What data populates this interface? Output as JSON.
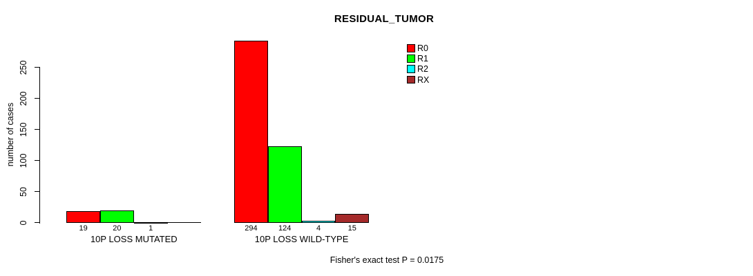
{
  "page": {
    "background": "#ffffff",
    "text_color": "#000000"
  },
  "chart_data": {
    "type": "bar",
    "title": "RESIDUAL_TUMOR",
    "xlabel": "",
    "ylabel": "number of cases",
    "ylim": [
      0,
      295
    ],
    "yticks": [
      0,
      50,
      100,
      150,
      200,
      250
    ],
    "grid": false,
    "legend_position": "top-right",
    "series": [
      {
        "name": "R0",
        "color": "#FF0000"
      },
      {
        "name": "R1",
        "color": "#00FF00"
      },
      {
        "name": "R2",
        "color": "#00FFFF"
      },
      {
        "name": "RX",
        "color": "#A52A2A"
      }
    ],
    "groups": [
      {
        "label": "10P LOSS MUTATED",
        "values": [
          19,
          20,
          1,
          null
        ]
      },
      {
        "label": "10P LOSS WILD-TYPE",
        "values": [
          294,
          124,
          4,
          15
        ]
      }
    ],
    "bar_value_labels": [
      [
        "19",
        "20",
        "1",
        null
      ],
      [
        "294",
        "124",
        "4",
        "15"
      ]
    ],
    "annotation": "Fisher's exact test P = 0.0175"
  }
}
